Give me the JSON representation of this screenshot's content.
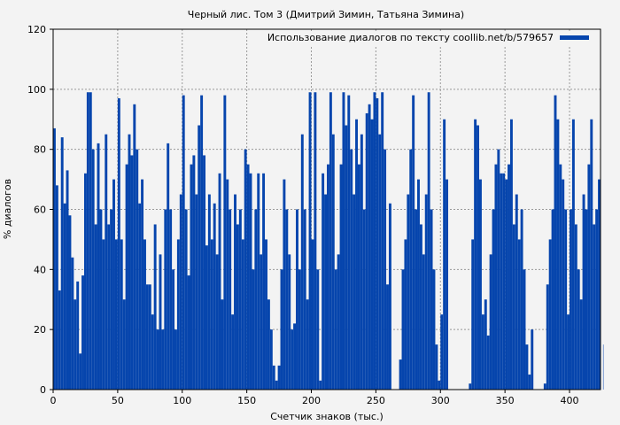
{
  "chart_data": {
    "type": "bar",
    "title": "Черный лис. Том 3 (Дмитрий Зимин, Татьяна Зимина)",
    "xlabel": "Счетчик знаков (тыс.)",
    "ylabel": "% диалогов",
    "xlim": [
      0,
      424
    ],
    "ylim": [
      0,
      120
    ],
    "xticks": [
      0,
      50,
      100,
      150,
      200,
      250,
      300,
      350,
      400
    ],
    "yticks": [
      0,
      20,
      40,
      60,
      80,
      100,
      120
    ],
    "grid": true,
    "legend": {
      "label": "Использование диалогов по тексту coollib.net/b/579657",
      "placement": "top-right"
    },
    "bar_color": "#0645ad",
    "x_step": 2,
    "values": [
      87,
      68,
      33,
      84,
      62,
      73,
      58,
      44,
      30,
      36,
      12,
      38,
      72,
      99,
      99,
      80,
      55,
      82,
      60,
      50,
      85,
      55,
      60,
      70,
      50,
      97,
      50,
      30,
      75,
      85,
      78,
      95,
      80,
      62,
      70,
      50,
      35,
      35,
      25,
      55,
      20,
      45,
      20,
      60,
      82,
      60,
      40,
      20,
      50,
      65,
      98,
      60,
      38,
      75,
      78,
      65,
      88,
      98,
      78,
      48,
      65,
      50,
      62,
      45,
      72,
      30,
      98,
      70,
      60,
      25,
      65,
      55,
      60,
      50,
      80,
      75,
      72,
      40,
      60,
      72,
      45,
      72,
      50,
      30,
      20,
      8,
      3,
      8,
      40,
      70,
      60,
      45,
      20,
      22,
      60,
      40,
      85,
      60,
      30,
      99,
      50,
      99,
      40,
      3,
      72,
      65,
      75,
      99,
      85,
      40,
      45,
      75,
      99,
      88,
      98,
      80,
      65,
      90,
      75,
      85,
      60,
      92,
      95,
      90,
      99,
      97,
      85,
      99,
      80,
      35,
      62,
      0,
      0,
      0,
      10,
      40,
      50,
      65,
      80,
      98,
      60,
      70,
      55,
      45,
      65,
      99,
      60,
      40,
      15,
      3,
      25,
      90,
      70,
      0,
      0,
      0,
      0,
      0,
      0,
      0,
      0,
      2,
      50,
      90,
      88,
      70,
      25,
      30,
      18,
      45,
      60,
      75,
      80,
      72,
      72,
      70,
      75,
      90,
      55,
      65,
      50,
      60,
      40,
      15,
      5,
      20,
      0,
      0,
      0,
      0,
      2,
      35,
      50,
      60,
      98,
      90,
      75,
      70,
      60,
      25,
      60,
      90,
      55,
      40,
      30,
      65,
      60,
      75,
      90,
      55,
      60,
      70,
      40,
      15
    ]
  }
}
